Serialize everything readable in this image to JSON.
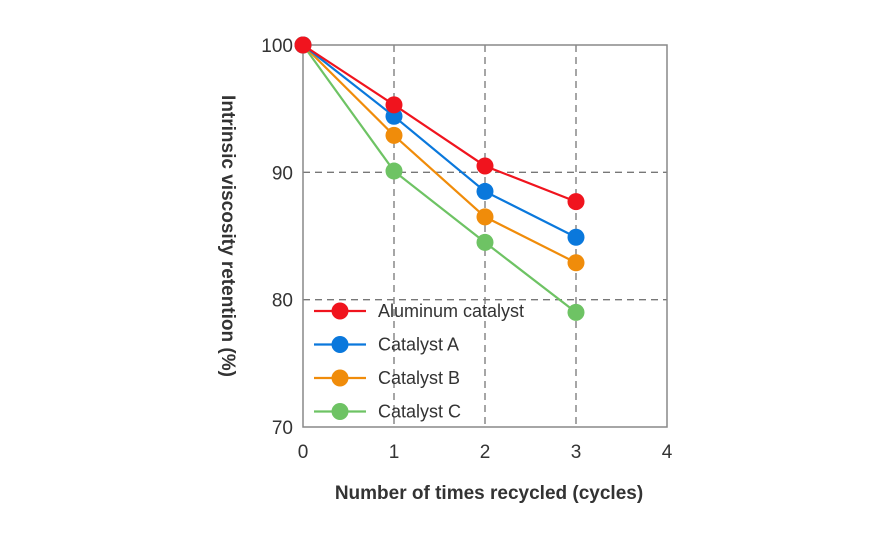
{
  "chart_data": {
    "type": "line",
    "xlabel": "Number of times recycled (cycles)",
    "ylabel": "Intrinsic viscosity retention (%)",
    "xlim": [
      0,
      4
    ],
    "ylim": [
      70,
      100
    ],
    "xticks": [
      "0",
      "1",
      "2",
      "3",
      "4"
    ],
    "yticks": [
      "70",
      "80",
      "90",
      "100"
    ],
    "grid": "dashed",
    "legend_position": "bottom-left",
    "x": [
      0,
      1,
      2,
      3
    ],
    "series": [
      {
        "name": "Aluminum catalyst",
        "color": "#f0141e",
        "values": [
          100,
          95.3,
          90.5,
          87.7
        ]
      },
      {
        "name": "Catalyst A",
        "color": "#0a78dc",
        "values": [
          100,
          94.4,
          88.5,
          84.9
        ]
      },
      {
        "name": "Catalyst B",
        "color": "#f08c0a",
        "values": [
          100,
          92.9,
          86.5,
          82.9
        ]
      },
      {
        "name": "Catalyst C",
        "color": "#6ec364",
        "values": [
          100,
          90.1,
          84.5,
          79.0
        ]
      }
    ]
  }
}
